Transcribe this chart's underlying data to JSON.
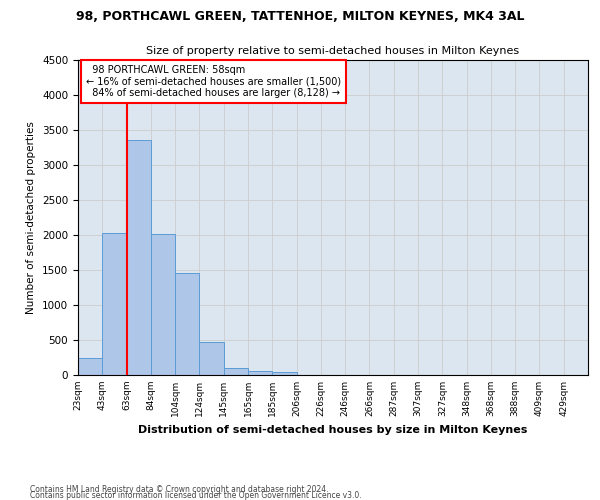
{
  "title_line1": "98, PORTHCAWL GREEN, TATTENHOE, MILTON KEYNES, MK4 3AL",
  "title_line2": "Size of property relative to semi-detached houses in Milton Keynes",
  "xlabel": "Distribution of semi-detached houses by size in Milton Keynes",
  "ylabel": "Number of semi-detached properties",
  "footer_line1": "Contains HM Land Registry data © Crown copyright and database right 2024.",
  "footer_line2": "Contains public sector information licensed under the Open Government Licence v3.0.",
  "bin_labels": [
    "23sqm",
    "43sqm",
    "63sqm",
    "84sqm",
    "104sqm",
    "124sqm",
    "145sqm",
    "165sqm",
    "185sqm",
    "206sqm",
    "226sqm",
    "246sqm",
    "266sqm",
    "287sqm",
    "307sqm",
    "327sqm",
    "348sqm",
    "368sqm",
    "388sqm",
    "409sqm",
    "429sqm"
  ],
  "bar_heights": [
    250,
    2030,
    3360,
    2010,
    1460,
    470,
    100,
    55,
    50,
    0,
    0,
    0,
    0,
    0,
    0,
    0,
    0,
    0,
    0,
    0,
    0
  ],
  "bar_color": "#aec6e8",
  "bar_edgecolor": "#5b9bd5",
  "ylim": [
    0,
    4500
  ],
  "yticks": [
    0,
    500,
    1000,
    1500,
    2000,
    2500,
    3000,
    3500,
    4000,
    4500
  ],
  "property_label": "98 PORTHCAWL GREEN: 58sqm",
  "pct_smaller": 16,
  "n_smaller": 1500,
  "pct_larger": 84,
  "n_larger": 8128,
  "vline_x": 2,
  "grid_color": "#cccccc",
  "background_color": "#dce6f0"
}
